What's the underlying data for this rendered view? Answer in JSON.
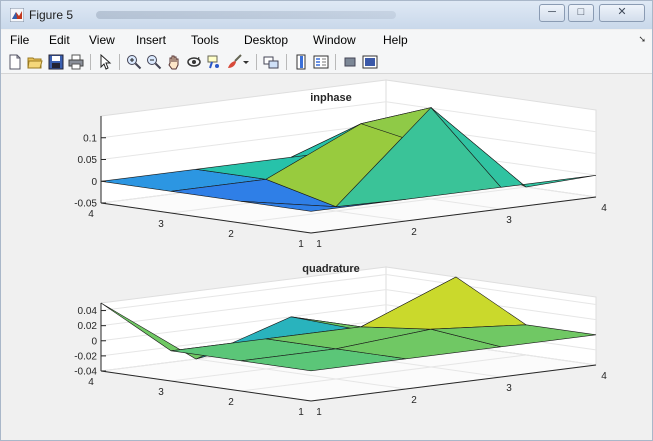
{
  "window": {
    "title": "Figure 5",
    "controls": {
      "minimize": "─",
      "maximize": "□",
      "close": "✕"
    }
  },
  "menubar": {
    "items": [
      "File",
      "Edit",
      "View",
      "Insert",
      "Tools",
      "Desktop",
      "Window",
      "Help"
    ],
    "overflow": "➘"
  },
  "toolbar": {
    "buttons": [
      "new-figure-icon",
      "open-file-icon",
      "save-icon",
      "print-icon",
      "pointer-icon",
      "zoom-in-icon",
      "zoom-out-icon",
      "pan-hand-icon",
      "rotate-3d-icon",
      "data-cursor-icon",
      "brush-icon",
      "brush-dropdown-icon",
      "link-plot-icon",
      "colorbar-icon",
      "legend-icon",
      "hide-plot-tools-icon",
      "show-plot-tools-icon"
    ]
  },
  "colors": {
    "parula_dark_blue": "#3e26a8",
    "parula_blue": "#2d8bf0",
    "parula_teal": "#27c2aa",
    "parula_yellow": "#f5e61e",
    "axes_bg": "#ffffff",
    "figure_bg": "#f0f0f0"
  },
  "chart_data": [
    {
      "type": "surface",
      "title": "inphase",
      "x_ticks": [
        "1",
        "2",
        "3",
        "4"
      ],
      "y_ticks": [
        "1",
        "2",
        "3",
        "4"
      ],
      "z_ticks": [
        "-0.05",
        "0",
        "0.05",
        "0.1"
      ],
      "x": [
        1,
        2,
        3,
        4
      ],
      "y": [
        1,
        2,
        3,
        4
      ],
      "z": [
        [
          0.0,
          0.0,
          0.0,
          0.0
        ],
        [
          0.0,
          -0.04,
          0.16,
          -0.05
        ],
        [
          0.0,
          0.0,
          0.1,
          0.0
        ],
        [
          0.0,
          0.0,
          0.0,
          0.0
        ]
      ],
      "zlim": [
        -0.05,
        0.15
      ],
      "colormap": "parula",
      "grid": true
    },
    {
      "type": "surface",
      "title": "quadrature",
      "x_ticks": [
        "1",
        "2",
        "3",
        "4"
      ],
      "y_ticks": [
        "1",
        "2",
        "3",
        "4"
      ],
      "z_ticks": [
        "-0.04",
        "-0.02",
        "0",
        "0.02",
        "0.04"
      ],
      "x": [
        1,
        2,
        3,
        4
      ],
      "y": [
        1,
        2,
        3,
        4
      ],
      "z": [
        [
          0.0,
          0.0,
          0.0,
          0.0
        ],
        [
          0.0,
          0.0,
          0.01,
          0.0
        ],
        [
          0.0,
          0.0,
          0.0,
          0.05
        ],
        [
          0.05,
          -0.04,
          0.0,
          -0.04
        ]
      ],
      "zlim": [
        -0.04,
        0.05
      ],
      "colormap": "parula",
      "grid": true
    }
  ]
}
